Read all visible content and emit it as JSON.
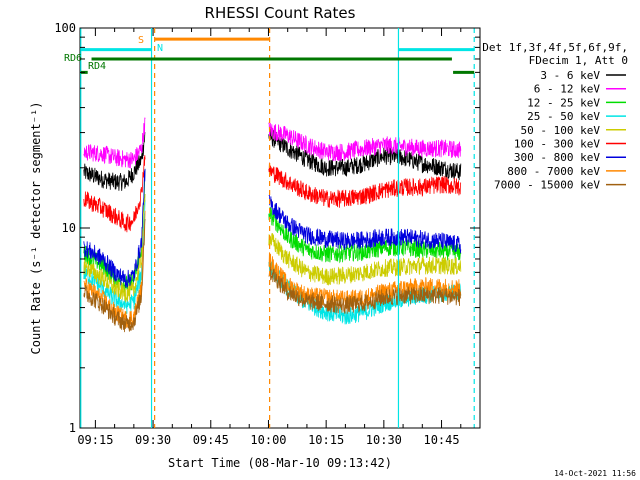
{
  "chart_data": {
    "type": "line",
    "title": "RHESSI Count Rates",
    "xlabel": "Start Time (08-Mar-10 09:13:42)",
    "ylabel": "Count Rate (s⁻¹ detector segment⁻¹)",
    "xlim": [
      -4,
      100
    ],
    "ylim": [
      1,
      100
    ],
    "yscale": "log",
    "x_unit": "minutes after 09:15",
    "x_ticks": [
      {
        "x": 0,
        "label": "09:15"
      },
      {
        "x": 15,
        "label": "09:30"
      },
      {
        "x": 30,
        "label": "09:45"
      },
      {
        "x": 45,
        "label": "10:00"
      },
      {
        "x": 60,
        "label": "10:15"
      },
      {
        "x": 75,
        "label": "10:30"
      },
      {
        "x": 90,
        "label": "10:45"
      }
    ],
    "y_ticks": [
      {
        "y": 1,
        "label": "1"
      },
      {
        "y": 10,
        "label": "10"
      },
      {
        "y": 100,
        "label": "100"
      }
    ],
    "legend": {
      "header1": "Det 1f,3f,4f,5f,6f,9f,",
      "header2": "FDecim 1, Att 0",
      "placement": "right"
    },
    "series": [
      {
        "name": "3 - 6 keV",
        "color": "#000000",
        "points": [
          [
            -3,
            19
          ],
          [
            2,
            17.5
          ],
          [
            5,
            17
          ],
          [
            8,
            17
          ],
          [
            10,
            19
          ],
          [
            12,
            22
          ],
          [
            13,
            30
          ],
          [
            45,
            29
          ],
          [
            50,
            25
          ],
          [
            55,
            22
          ],
          [
            60,
            20
          ],
          [
            65,
            20
          ],
          [
            70,
            21
          ],
          [
            75,
            23
          ],
          [
            80,
            22.5
          ],
          [
            85,
            21
          ],
          [
            90,
            20
          ],
          [
            95,
            19
          ]
        ]
      },
      {
        "name": "6 - 12 keV",
        "color": "#ff00ff",
        "points": [
          [
            -3,
            24
          ],
          [
            2,
            23.5
          ],
          [
            5,
            22.5
          ],
          [
            8,
            22
          ],
          [
            10,
            22
          ],
          [
            12,
            25
          ],
          [
            13,
            35
          ],
          [
            45,
            31
          ],
          [
            50,
            29
          ],
          [
            55,
            26
          ],
          [
            60,
            24
          ],
          [
            65,
            24
          ],
          [
            70,
            25
          ],
          [
            75,
            26
          ],
          [
            80,
            25.5
          ],
          [
            85,
            25
          ],
          [
            90,
            25
          ],
          [
            95,
            24.5
          ]
        ]
      },
      {
        "name": "12 - 25 keV",
        "color": "#00dd00",
        "points": [
          [
            -3,
            7.5
          ],
          [
            2,
            6.5
          ],
          [
            5,
            5.6
          ],
          [
            8,
            5.2
          ],
          [
            10,
            5.5
          ],
          [
            12,
            8
          ],
          [
            13,
            20
          ],
          [
            45,
            12
          ],
          [
            50,
            9
          ],
          [
            55,
            7.8
          ],
          [
            60,
            7.4
          ],
          [
            65,
            7.5
          ],
          [
            70,
            7.6
          ],
          [
            75,
            8
          ],
          [
            80,
            8
          ],
          [
            85,
            7.8
          ],
          [
            90,
            7.7
          ],
          [
            95,
            7.5
          ]
        ]
      },
      {
        "name": "25 - 50 keV",
        "color": "#00e5e5",
        "points": [
          [
            -3,
            6
          ],
          [
            2,
            5
          ],
          [
            5,
            4.4
          ],
          [
            8,
            4.1
          ],
          [
            10,
            4.3
          ],
          [
            12,
            6
          ],
          [
            13,
            15
          ],
          [
            45,
            6.5
          ],
          [
            50,
            5
          ],
          [
            55,
            4.2
          ],
          [
            60,
            3.8
          ],
          [
            65,
            3.6
          ],
          [
            70,
            3.8
          ],
          [
            75,
            4.2
          ],
          [
            80,
            4.4
          ],
          [
            85,
            4.6
          ],
          [
            90,
            4.7
          ],
          [
            95,
            4.8
          ]
        ]
      },
      {
        "name": "50 - 100 keV",
        "color": "#cccc00",
        "points": [
          [
            -3,
            6.5
          ],
          [
            2,
            5.6
          ],
          [
            5,
            5
          ],
          [
            8,
            4.7
          ],
          [
            10,
            4.9
          ],
          [
            12,
            7
          ],
          [
            13,
            17
          ],
          [
            45,
            9
          ],
          [
            50,
            7
          ],
          [
            55,
            6
          ],
          [
            60,
            5.7
          ],
          [
            65,
            5.8
          ],
          [
            70,
            6
          ],
          [
            75,
            6.3
          ],
          [
            80,
            6.4
          ],
          [
            85,
            6.5
          ],
          [
            90,
            6.5
          ],
          [
            95,
            6.4
          ]
        ]
      },
      {
        "name": "100 - 300 keV",
        "color": "#ff0000",
        "points": [
          [
            -3,
            14
          ],
          [
            2,
            12.5
          ],
          [
            5,
            11.5
          ],
          [
            8,
            10.5
          ],
          [
            10,
            11
          ],
          [
            12,
            15
          ],
          [
            13,
            25
          ],
          [
            45,
            19.5
          ],
          [
            50,
            17
          ],
          [
            55,
            15
          ],
          [
            60,
            14
          ],
          [
            65,
            14
          ],
          [
            70,
            14.5
          ],
          [
            75,
            15.5
          ],
          [
            80,
            16
          ],
          [
            85,
            16
          ],
          [
            90,
            16.5
          ],
          [
            95,
            16
          ]
        ]
      },
      {
        "name": "300 - 800 keV",
        "color": "#0000dd",
        "points": [
          [
            -3,
            8
          ],
          [
            2,
            7
          ],
          [
            5,
            6
          ],
          [
            8,
            5.5
          ],
          [
            10,
            5.8
          ],
          [
            12,
            8.5
          ],
          [
            13,
            22
          ],
          [
            45,
            13.5
          ],
          [
            50,
            10.5
          ],
          [
            55,
            9.2
          ],
          [
            60,
            8.8
          ],
          [
            65,
            8.6
          ],
          [
            70,
            8.7
          ],
          [
            75,
            9
          ],
          [
            80,
            9
          ],
          [
            85,
            8.8
          ],
          [
            90,
            8.6
          ],
          [
            95,
            8.2
          ]
        ]
      },
      {
        "name": "800 - 7000 keV",
        "color": "#ff8800",
        "points": [
          [
            -3,
            5.2
          ],
          [
            2,
            4.4
          ],
          [
            5,
            3.8
          ],
          [
            8,
            3.5
          ],
          [
            10,
            3.6
          ],
          [
            12,
            5
          ],
          [
            13,
            14
          ],
          [
            45,
            7
          ],
          [
            50,
            5.2
          ],
          [
            55,
            4.6
          ],
          [
            60,
            4.5
          ],
          [
            65,
            4.4
          ],
          [
            70,
            4.5
          ],
          [
            75,
            4.8
          ],
          [
            80,
            5
          ],
          [
            85,
            5.1
          ],
          [
            90,
            5.1
          ],
          [
            95,
            5
          ]
        ]
      },
      {
        "name": "7000 - 15000 keV",
        "color": "#a06010",
        "points": [
          [
            -3,
            4.8
          ],
          [
            2,
            4.1
          ],
          [
            5,
            3.6
          ],
          [
            8,
            3.3
          ],
          [
            10,
            3.4
          ],
          [
            12,
            4.6
          ],
          [
            13,
            12
          ],
          [
            45,
            6.2
          ],
          [
            50,
            4.8
          ],
          [
            55,
            4.3
          ],
          [
            60,
            4.2
          ],
          [
            65,
            4.1
          ],
          [
            70,
            4.2
          ],
          [
            75,
            4.5
          ],
          [
            80,
            4.6
          ],
          [
            85,
            4.6
          ],
          [
            90,
            4.6
          ],
          [
            95,
            4.5
          ]
        ]
      }
    ],
    "vlines": [
      {
        "x": -3.8,
        "color": "#00e5e5",
        "style": "solid"
      },
      {
        "x": 14.6,
        "color": "#00e5e5",
        "style": "solid"
      },
      {
        "x": 15.4,
        "color": "#ff8800",
        "style": "dashed"
      },
      {
        "x": 45.3,
        "color": "#ff8800",
        "style": "dashed"
      },
      {
        "x": 78.8,
        "color": "#00e5e5",
        "style": "solid"
      },
      {
        "x": 98.5,
        "color": "#00e5e5",
        "style": "dashed"
      }
    ],
    "bars": [
      {
        "label": "",
        "color": "#00e5e5",
        "y": 78,
        "segments": [
          [
            -3.8,
            14.6
          ],
          [
            78.8,
            98.5
          ]
        ]
      },
      {
        "label": "S",
        "color": "#ff8800",
        "y": 88,
        "segments": [
          [
            15.4,
            45.3
          ]
        ]
      },
      {
        "label": "N",
        "color": "#00e5e5",
        "y": 78,
        "segments": []
      },
      {
        "label": "RD6",
        "color": "#007700",
        "y": 70,
        "segments": [
          [
            -1,
            92.7
          ]
        ]
      },
      {
        "label": "RD4",
        "color": "#007700",
        "y": 60,
        "segments": [
          [
            -3.8,
            -2
          ],
          [
            93,
            98.5
          ]
        ]
      }
    ],
    "footer": "14-Oct-2021 11:56"
  }
}
